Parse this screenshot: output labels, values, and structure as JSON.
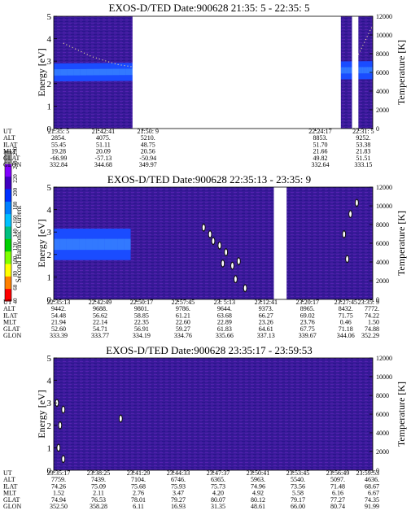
{
  "chart_data": [
    {
      "type": "heatmap",
      "title": "EXOS-D/TED   Date:900628  21:35: 5 - 22:35: 5",
      "ylabel": "Energy [eV]",
      "y2label": "Temperature [K]",
      "ylim": [
        0,
        5
      ],
      "yticks": [
        "0",
        "1",
        "2",
        "3",
        "4",
        "5"
      ],
      "y2lim": [
        0,
        12000
      ],
      "y2ticks": [
        "0",
        "2000",
        "4000",
        "6000",
        "8000",
        "10000",
        "12000"
      ],
      "data_gaps": [
        [
          0.247,
          0.9
        ],
        [
          0.935,
          0.955
        ]
      ],
      "band_center_ev": 2.5,
      "band_center_end_ev": 2.6,
      "band_width_ev": 0.4,
      "band_extent": [
        [
          0.0,
          0.247
        ],
        [
          0.9,
          0.935
        ],
        [
          0.955,
          1.0
        ]
      ],
      "emission_curve": [
        [
          0.03,
          3.8
        ],
        [
          0.12,
          3.2
        ],
        [
          0.2,
          2.85
        ],
        [
          0.247,
          2.75
        ]
      ],
      "emission_curve_2": [
        [
          0.955,
          3.3
        ],
        [
          1.0,
          4.6
        ]
      ],
      "table_rows": [
        "UT",
        "ALT",
        "ILAT",
        "MLT",
        "GLAT",
        "GLON"
      ],
      "table_columns": [
        {
          "pos": 0.0,
          "values": [
            "21:35: 5",
            "2854.",
            "55.45",
            "19.28",
            "-66.99",
            "332.84"
          ]
        },
        {
          "pos": 0.14,
          "values": [
            "21:42:41",
            "4075.",
            "51.11",
            "20.09",
            "-57.13",
            "344.68"
          ]
        },
        {
          "pos": 0.28,
          "values": [
            "21:50: 9",
            "5210.",
            "48.75",
            "20.56",
            "-50.94",
            "349.97"
          ]
        },
        {
          "pos": 0.82,
          "values": [
            "22:24:17",
            "8853.",
            "51.70",
            "21.66",
            "49.82",
            "332.64"
          ]
        },
        {
          "pos": 0.955,
          "values": [
            "22:31: 5",
            "9252.",
            "53.38",
            "21.83",
            "51.51",
            "333.15"
          ]
        }
      ]
    },
    {
      "type": "heatmap",
      "title": "EXOS-D/TED   Date:900628  22:35:13 - 23:35: 9",
      "ylabel": "Energy [eV]",
      "y2label": "Temperature [K]",
      "ylim": [
        0,
        5
      ],
      "yticks": [
        "0",
        "1",
        "2",
        "3",
        "4",
        "5"
      ],
      "y2lim": [
        0,
        12000
      ],
      "y2ticks": [
        "0",
        "2000",
        "4000",
        "6000",
        "8000",
        "10000",
        "12000"
      ],
      "data_gaps": [
        [
          0.69,
          0.73
        ]
      ],
      "band_center_ev": 2.45,
      "band_center_end_ev": 2.45,
      "band_width_ev": 0.7,
      "band_extent": [
        [
          0.0,
          0.24
        ]
      ],
      "hotspots": [
        [
          0.47,
          3.2
        ],
        [
          0.49,
          2.9
        ],
        [
          0.5,
          2.6
        ],
        [
          0.52,
          2.4
        ],
        [
          0.54,
          2.1
        ],
        [
          0.53,
          1.6
        ],
        [
          0.56,
          1.5
        ],
        [
          0.58,
          1.7
        ],
        [
          0.57,
          0.9
        ],
        [
          0.6,
          0.5
        ],
        [
          0.91,
          2.9
        ],
        [
          0.93,
          3.8
        ],
        [
          0.95,
          4.3
        ],
        [
          0.92,
          1.8
        ]
      ],
      "table_rows": [
        "UT",
        "ALT",
        "ILAT",
        "MLT",
        "GLAT",
        "GLON"
      ],
      "table_columns": [
        {
          "pos": 0.0,
          "values": [
            "22:35:13",
            "9442.",
            "54.48",
            "21.94",
            "52.60",
            "333.39"
          ]
        },
        {
          "pos": 0.13,
          "values": [
            "22:42:49",
            "9688.",
            "56.62",
            "22.14",
            "54.71",
            "333.77"
          ]
        },
        {
          "pos": 0.26,
          "values": [
            "22:50:17",
            "9801.",
            "58.85",
            "22.35",
            "56.91",
            "334.19"
          ]
        },
        {
          "pos": 0.39,
          "values": [
            "22:57:45",
            "9786.",
            "61.21",
            "22.60",
            "59.27",
            "334.76"
          ]
        },
        {
          "pos": 0.52,
          "values": [
            "23: 5:13",
            "9644.",
            "63.68",
            "22.89",
            "61.83",
            "335.66"
          ]
        },
        {
          "pos": 0.65,
          "values": [
            "23:12:41",
            "9373.",
            "66.27",
            "23.26",
            "64.61",
            "337.13"
          ]
        },
        {
          "pos": 0.78,
          "values": [
            "23:20:17",
            "8965.",
            "69.02",
            "23.76",
            "67.75",
            "339.67"
          ]
        },
        {
          "pos": 0.9,
          "values": [
            "23:27:45",
            "8432.",
            "71.75",
            "0.46",
            "71.18",
            "344.06"
          ]
        },
        {
          "pos": 1.0,
          "values": [
            "23:35: 9",
            "7772.",
            "74.22",
            "1.50",
            "74.88",
            "352.29"
          ]
        }
      ]
    },
    {
      "type": "heatmap",
      "title": "EXOS-D/TED   Date:900628  23:35:17 - 23:59:53",
      "ylabel": "Energy [eV]",
      "y2label": "Temperature [K]",
      "ylim": [
        0,
        5
      ],
      "yticks": [
        "0",
        "1",
        "2",
        "3",
        "4",
        "5"
      ],
      "y2lim": [
        0,
        12000
      ],
      "y2ticks": [
        "0",
        "2000",
        "4000",
        "6000",
        "8000",
        "10000",
        "12000"
      ],
      "data_gaps": [],
      "band_center_ev": 0,
      "band_center_end_ev": 0,
      "band_width_ev": 0,
      "band_extent": [],
      "hotspots": [
        [
          0.01,
          3.0
        ],
        [
          0.02,
          2.0
        ],
        [
          0.015,
          1.0
        ],
        [
          0.03,
          0.5
        ],
        [
          0.03,
          2.7
        ],
        [
          0.21,
          2.3
        ]
      ],
      "table_rows": [
        "UT",
        "ALT",
        "ILAT",
        "MLT",
        "GLAT",
        "GLON"
      ],
      "table_columns": [
        {
          "pos": 0.0,
          "values": [
            "23:35:17",
            "7759.",
            "74.26",
            "1.52",
            "74.94",
            "352.50"
          ]
        },
        {
          "pos": 0.125,
          "values": [
            "23:38:25",
            "7439.",
            "75.09",
            "2.11",
            "76.53",
            "358.28"
          ]
        },
        {
          "pos": 0.25,
          "values": [
            "23:41:29",
            "7104.",
            "75.68",
            "2.76",
            "78.01",
            "6.11"
          ]
        },
        {
          "pos": 0.375,
          "values": [
            "23:44:33",
            "6746.",
            "75.93",
            "3.47",
            "79.27",
            "16.93"
          ]
        },
        {
          "pos": 0.5,
          "values": [
            "23:47:37",
            "6365.",
            "75.73",
            "4.20",
            "80.07",
            "31.35"
          ]
        },
        {
          "pos": 0.625,
          "values": [
            "23:50:41",
            "5963.",
            "74.96",
            "4.92",
            "80.12",
            "48.61"
          ]
        },
        {
          "pos": 0.75,
          "values": [
            "23:53:45",
            "5540.",
            "73.56",
            "5.58",
            "79.17",
            "66.00"
          ]
        },
        {
          "pos": 0.875,
          "values": [
            "23:56:49",
            "5097.",
            "71.48",
            "6.16",
            "77.27",
            "80.74"
          ]
        },
        {
          "pos": 1.0,
          "values": [
            "23:59:53",
            "4636.",
            "68.67",
            "6.67",
            "74.35",
            "91.99"
          ]
        }
      ]
    }
  ],
  "colorbar": {
    "label": "Second Harmonic Current",
    "ticks": [
      "40",
      "60",
      "80",
      "100",
      "120",
      "140",
      "160",
      "180",
      "200",
      "220",
      "240",
      "250"
    ],
    "colors": [
      "#ff0000",
      "#ff8000",
      "#ffff00",
      "#80ff00",
      "#00d000",
      "#00c080",
      "#00c0ff",
      "#0080ff",
      "#0030ff",
      "#4000c0",
      "#8000ff",
      "#a0a0a0"
    ]
  },
  "colors": {
    "background": "#3a1a9a",
    "band": "#1a4cff",
    "band_core": "#3d8dff",
    "gap": "#ffffff",
    "hotspot": "#ffffff"
  }
}
